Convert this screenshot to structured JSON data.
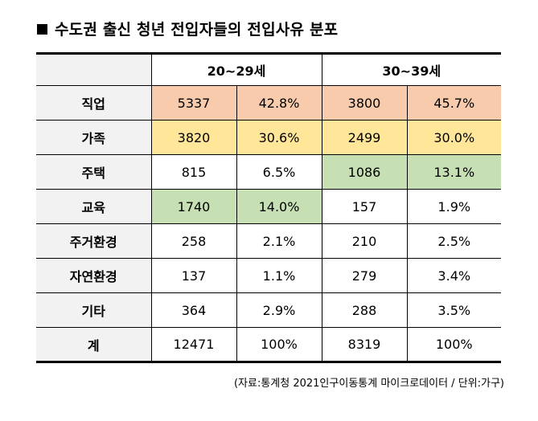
{
  "title": "수도권 출신 청년 전입자들의 전입사유 분포",
  "columns": {
    "group_a": "20~29세",
    "group_b": "30~39세"
  },
  "rows": [
    {
      "label": "직업",
      "a_count": "5337",
      "a_pct": "42.8%",
      "b_count": "3800",
      "b_pct": "45.7%"
    },
    {
      "label": "가족",
      "a_count": "3820",
      "a_pct": "30.6%",
      "b_count": "2499",
      "b_pct": "30.0%"
    },
    {
      "label": "주택",
      "a_count": "815",
      "a_pct": "6.5%",
      "b_count": "1086",
      "b_pct": "13.1%"
    },
    {
      "label": "교육",
      "a_count": "1740",
      "a_pct": "14.0%",
      "b_count": "157",
      "b_pct": "1.9%"
    },
    {
      "label": "주거환경",
      "a_count": "258",
      "a_pct": "2.1%",
      "b_count": "210",
      "b_pct": "2.5%"
    },
    {
      "label": "자연환경",
      "a_count": "137",
      "a_pct": "1.1%",
      "b_count": "279",
      "b_pct": "3.4%"
    },
    {
      "label": "기타",
      "a_count": "364",
      "a_pct": "2.9%",
      "b_count": "288",
      "b_pct": "3.5%"
    },
    {
      "label": "계",
      "a_count": "12471",
      "a_pct": "100%",
      "b_count": "8319",
      "b_pct": "100%"
    }
  ],
  "source": "(자료:통계청 2021인구이동통계 마이크로데이터 / 단위:가구)",
  "colors": {
    "header_bg": "#f2f2f2",
    "orange": "#f8cbad",
    "yellow": "#ffe699",
    "green": "#c6e0b4"
  },
  "icons": {
    "title_bullet": "black-square-icon"
  }
}
